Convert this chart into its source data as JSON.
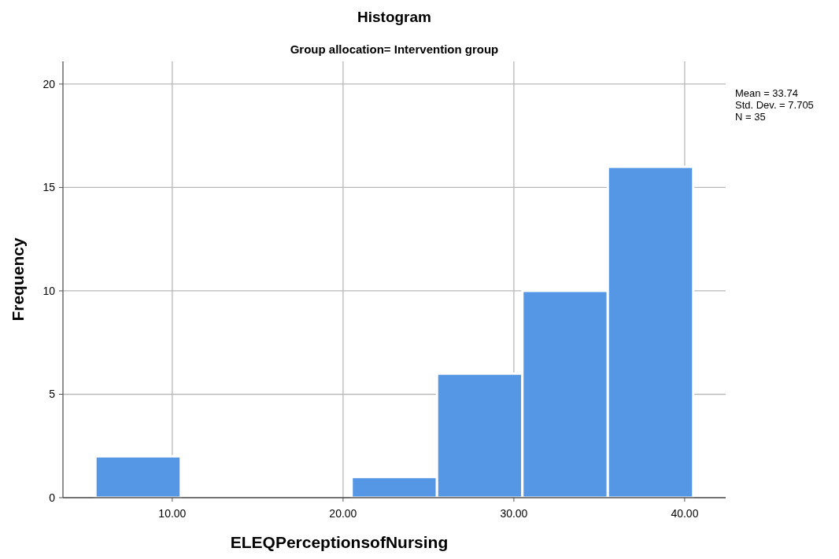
{
  "chart_data": {
    "type": "histogram",
    "title": "Histogram",
    "subtitle": "Group allocation= Intervention group",
    "xlabel": "ELEQPerceptionsofNursing",
    "ylabel": "Frequency",
    "bins": [
      5.5,
      10.5,
      15.5,
      20.5,
      25.5,
      30.5,
      35.5,
      40.5
    ],
    "values": [
      2,
      0,
      0,
      1,
      6,
      10,
      16
    ],
    "color": "#5596e5",
    "xlim": [
      3.6,
      42.4
    ],
    "xticks": [
      {
        "value": 10,
        "label": "10.00"
      },
      {
        "value": 20,
        "label": "20.00"
      },
      {
        "value": 30,
        "label": "30.00"
      },
      {
        "value": 40,
        "label": "40.00"
      }
    ],
    "ylim": [
      0,
      21.1
    ],
    "yticks": [
      0,
      5,
      10,
      15,
      20
    ],
    "grid": true,
    "annotations": [
      "Mean = 33.74",
      "Std. Dev. = 7.705",
      "N = 35"
    ]
  }
}
